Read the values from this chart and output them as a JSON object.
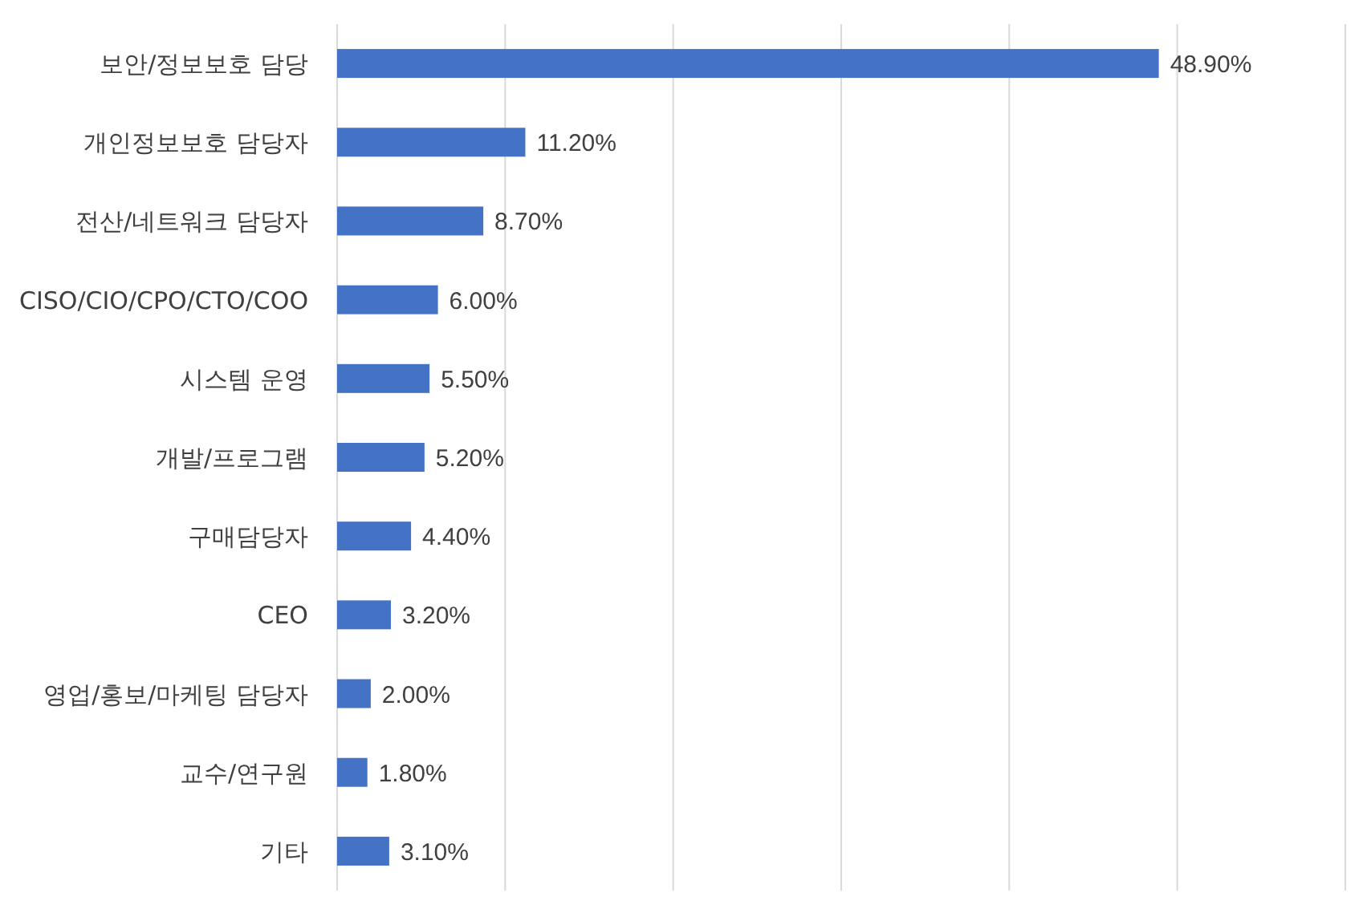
{
  "chart_data": {
    "type": "bar",
    "orientation": "horizontal",
    "categories": [
      "보안/정보보호 담당",
      "개인정보보호 담당자",
      "전산/네트워크 담당자",
      "CISO/CIO/CPO/CTO/COO",
      "시스템 운영",
      "개발/프로그램",
      "구매담당자",
      "CEO",
      "영업/홍보/마케팅 담당자",
      "교수/연구원",
      "기타"
    ],
    "values": [
      48.9,
      11.2,
      8.7,
      6.0,
      5.5,
      5.2,
      4.4,
      3.2,
      2.0,
      1.8,
      3.1
    ],
    "value_labels": [
      "48.90%",
      "11.20%",
      "8.70%",
      "6.00%",
      "5.50%",
      "5.20%",
      "4.40%",
      "3.20%",
      "2.00%",
      "1.80%",
      "3.10%"
    ],
    "color": "#4472c4",
    "xlim": [
      0,
      60
    ],
    "xticks": [
      {
        "value": 0,
        "label": null
      },
      {
        "value": 10,
        "label": null
      },
      {
        "value": 20,
        "label": null
      },
      {
        "value": 30,
        "label": null
      },
      {
        "value": 40,
        "label": null
      },
      {
        "value": 50,
        "label": null
      },
      {
        "value": 60,
        "label": null
      }
    ],
    "grid": "x",
    "tick_labels": "y"
  }
}
